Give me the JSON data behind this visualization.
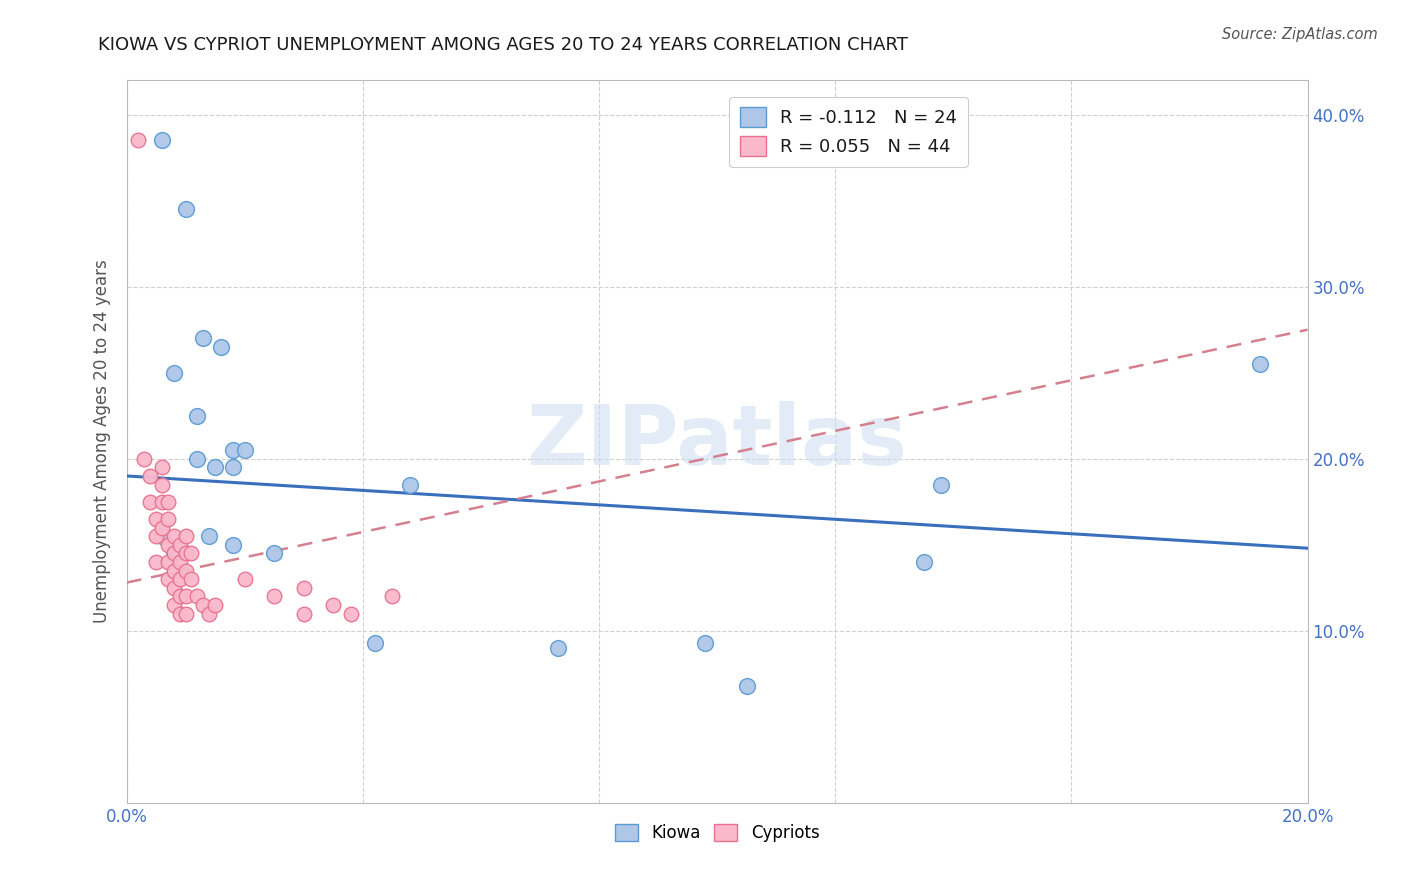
{
  "title": "KIOWA VS CYPRIOT UNEMPLOYMENT AMONG AGES 20 TO 24 YEARS CORRELATION CHART",
  "source": "Source: ZipAtlas.com",
  "ylabel": "Unemployment Among Ages 20 to 24 years",
  "xlim": [
    0.0,
    0.2
  ],
  "ylim": [
    0.0,
    0.42
  ],
  "kiowa_color": "#aec6e8",
  "cypriot_color": "#f9b8cb",
  "kiowa_edge_color": "#5b9bd5",
  "cypriot_edge_color": "#e8728e",
  "trend_kiowa_color": "#3a6fbd",
  "trend_cypriot_color": "#d4808e",
  "legend_R_kiowa": "R = -0.112",
  "legend_N_kiowa": "N = 24",
  "legend_R_cypriot": "R = 0.055",
  "legend_N_cypriot": "N = 44",
  "watermark": "ZIPatlas",
  "kiowa_x": [
    0.006,
    0.01,
    0.013,
    0.008,
    0.012,
    0.015,
    0.016,
    0.012,
    0.018,
    0.018,
    0.014,
    0.018,
    0.025,
    0.048,
    0.073,
    0.098,
    0.135,
    0.192,
    0.006,
    0.008,
    0.02,
    0.042,
    0.105,
    0.138
  ],
  "kiowa_y": [
    0.385,
    0.345,
    0.27,
    0.25,
    0.225,
    0.195,
    0.265,
    0.2,
    0.205,
    0.195,
    0.155,
    0.15,
    0.145,
    0.185,
    0.09,
    0.093,
    0.14,
    0.255,
    0.155,
    0.145,
    0.205,
    0.093,
    0.068,
    0.185
  ],
  "cypriot_x": [
    0.002,
    0.003,
    0.004,
    0.004,
    0.005,
    0.005,
    0.005,
    0.006,
    0.006,
    0.006,
    0.006,
    0.007,
    0.007,
    0.007,
    0.007,
    0.007,
    0.008,
    0.008,
    0.008,
    0.008,
    0.008,
    0.009,
    0.009,
    0.009,
    0.009,
    0.009,
    0.01,
    0.01,
    0.01,
    0.01,
    0.01,
    0.011,
    0.011,
    0.012,
    0.013,
    0.014,
    0.015,
    0.02,
    0.025,
    0.03,
    0.03,
    0.035,
    0.038,
    0.045
  ],
  "cypriot_y": [
    0.385,
    0.2,
    0.19,
    0.175,
    0.165,
    0.155,
    0.14,
    0.195,
    0.185,
    0.175,
    0.16,
    0.175,
    0.165,
    0.15,
    0.14,
    0.13,
    0.155,
    0.145,
    0.135,
    0.125,
    0.115,
    0.15,
    0.14,
    0.13,
    0.12,
    0.11,
    0.155,
    0.145,
    0.135,
    0.12,
    0.11,
    0.145,
    0.13,
    0.12,
    0.115,
    0.11,
    0.115,
    0.13,
    0.12,
    0.125,
    0.11,
    0.115,
    0.11,
    0.12
  ],
  "kiowa_trend_x": [
    0.0,
    0.2
  ],
  "kiowa_trend_y": [
    0.19,
    0.148
  ],
  "cypriot_trend_x": [
    0.0,
    0.2
  ],
  "cypriot_trend_y": [
    0.128,
    0.275
  ]
}
